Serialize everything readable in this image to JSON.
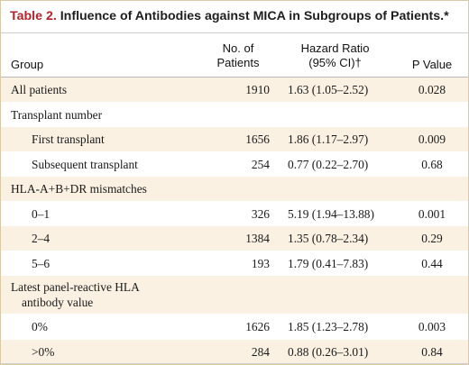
{
  "table": {
    "label": "Table 2.",
    "title": "Influence of Antibodies against MICA in Subgroups of Patients.*",
    "columns": {
      "group": "Group",
      "patients_line1": "No. of",
      "patients_line2": "Patients",
      "hazard_line1": "Hazard Ratio",
      "hazard_line2": "(95% CI)†",
      "pvalue": "P Value"
    },
    "rows": [
      {
        "group": "All patients",
        "patients": "1910",
        "hazard": "1.63 (1.05–2.52)",
        "pvalue": "0.028"
      },
      {
        "group": "Transplant number",
        "patients": "",
        "hazard": "",
        "pvalue": ""
      },
      {
        "group": "First transplant",
        "patients": "1656",
        "hazard": "1.86 (1.17–2.97)",
        "pvalue": "0.009"
      },
      {
        "group": "Subsequent transplant",
        "patients": "254",
        "hazard": "0.77 (0.22–2.70)",
        "pvalue": "0.68"
      },
      {
        "group": "HLA-A+B+DR mismatches",
        "patients": "",
        "hazard": "",
        "pvalue": ""
      },
      {
        "group": "0–1",
        "patients": "326",
        "hazard": "5.19 (1.94–13.88)",
        "pvalue": "0.001"
      },
      {
        "group": "2–4",
        "patients": "1384",
        "hazard": "1.35 (0.78–2.34)",
        "pvalue": "0.29"
      },
      {
        "group": "5–6",
        "patients": "193",
        "hazard": "1.79 (0.41–7.83)",
        "pvalue": "0.44"
      },
      {
        "group_line1": "Latest panel-reactive HLA",
        "group_line2": "antibody value",
        "patients": "",
        "hazard": "",
        "pvalue": ""
      },
      {
        "group": "0%",
        "patients": "1626",
        "hazard": "1.85 (1.23–2.78)",
        "pvalue": "0.003"
      },
      {
        "group": ">0%",
        "patients": "284",
        "hazard": "0.88 (0.26–3.01)",
        "pvalue": "0.84"
      }
    ]
  },
  "colors": {
    "label": "#b5222a",
    "row_shade": "#fbf1e2",
    "border": "#d9c9a8"
  }
}
